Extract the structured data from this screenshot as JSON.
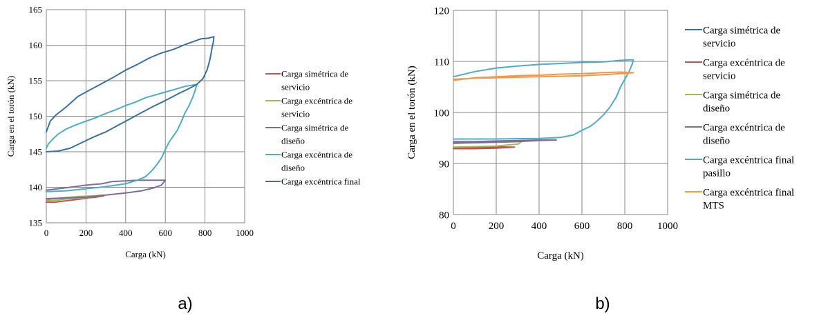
{
  "figure": {
    "panel_labels": [
      "a)",
      "b)"
    ]
  },
  "colors": {
    "sym_serv": "#3a6ea5",
    "exc_serv": "#c0504d",
    "sym_dis": "#9bbb59",
    "exc_dis": "#7f6a9c",
    "exc_final": "#4bacc6",
    "mts": "#f79646"
  },
  "chart_data": [
    {
      "type": "line",
      "xlabel": "Carga (kN)",
      "ylabel": "Carga en el torón (kN)",
      "xlim": [
        0,
        1000
      ],
      "ylim": [
        135,
        165
      ],
      "xticks": [
        "0",
        "200",
        "400",
        "600",
        "800",
        "1000"
      ],
      "yticks": [
        "135",
        "140",
        "145",
        "150",
        "155",
        "160",
        "165"
      ],
      "grid": true,
      "legend_position": "right",
      "series": [
        {
          "name": "Carga simétrica de servicio",
          "legend_lines": [
            "Carga simétrica de",
            "servicio"
          ],
          "color": "#c0504d",
          "points": [
            [
              0,
              137.9
            ],
            [
              40,
              137.9
            ],
            [
              100,
              138.1
            ],
            [
              160,
              138.3
            ],
            [
              210,
              138.5
            ],
            [
              250,
              138.6
            ],
            [
              290,
              138.8
            ],
            [
              250,
              138.7
            ],
            [
              180,
              138.6
            ],
            [
              100,
              138.5
            ],
            [
              30,
              138.4
            ],
            [
              0,
              138.2
            ]
          ]
        },
        {
          "name": "Carga excéntrica de servicio",
          "legend_lines": [
            "Carga excéntrica de",
            "servicio"
          ],
          "color": "#9bbb59",
          "points": [
            [
              0,
              138.1
            ],
            [
              60,
              138.2
            ],
            [
              120,
              138.4
            ],
            [
              180,
              138.5
            ],
            [
              240,
              138.7
            ],
            [
              290,
              138.9
            ],
            [
              240,
              138.8
            ],
            [
              160,
              138.7
            ],
            [
              80,
              138.5
            ],
            [
              0,
              138.3
            ]
          ]
        },
        {
          "name": "Carga simétrica de diseño",
          "legend_lines": [
            "Carga simétrica de",
            "diseño"
          ],
          "color": "#7f6a9c",
          "points": [
            [
              0,
              138.4
            ],
            [
              100,
              138.5
            ],
            [
              200,
              138.6
            ],
            [
              300,
              138.9
            ],
            [
              400,
              139.2
            ],
            [
              480,
              139.5
            ],
            [
              540,
              139.9
            ],
            [
              580,
              140.3
            ],
            [
              600,
              141.0
            ],
            [
              540,
              141.0
            ],
            [
              460,
              141.0
            ],
            [
              400,
              140.9
            ],
            [
              330,
              140.8
            ],
            [
              280,
              140.5
            ],
            [
              200,
              140.3
            ],
            [
              120,
              140.0
            ],
            [
              60,
              139.8
            ],
            [
              0,
              139.6
            ]
          ]
        },
        {
          "name": "Carga excéntrica de diseño",
          "legend_lines": [
            "Carga excéntrica de",
            "diseño"
          ],
          "color": "#4bacc6",
          "points": [
            [
              0,
              139.4
            ],
            [
              100,
              139.5
            ],
            [
              200,
              139.8
            ],
            [
              300,
              140.1
            ],
            [
              400,
              140.5
            ],
            [
              460,
              141.0
            ],
            [
              500,
              141.5
            ],
            [
              520,
              142.0
            ],
            [
              540,
              142.6
            ],
            [
              560,
              143.3
            ],
            [
              580,
              144.1
            ],
            [
              600,
              145.3
            ],
            [
              620,
              146.4
            ],
            [
              640,
              147.2
            ],
            [
              660,
              148.0
            ],
            [
              680,
              149.2
            ],
            [
              700,
              150.5
            ],
            [
              720,
              151.5
            ],
            [
              740,
              152.8
            ],
            [
              755,
              154.1
            ],
            [
              760,
              154.5
            ],
            [
              740,
              154.4
            ],
            [
              700,
              154.2
            ],
            [
              650,
              153.8
            ],
            [
              600,
              153.4
            ],
            [
              550,
              153.0
            ],
            [
              500,
              152.6
            ],
            [
              450,
              152.0
            ],
            [
              400,
              151.5
            ],
            [
              350,
              150.9
            ],
            [
              300,
              150.4
            ],
            [
              250,
              149.8
            ],
            [
              200,
              149.3
            ],
            [
              150,
              148.8
            ],
            [
              100,
              148.2
            ],
            [
              60,
              147.5
            ],
            [
              30,
              146.7
            ],
            [
              10,
              146.1
            ],
            [
              0,
              145.5
            ]
          ]
        },
        {
          "name": "Carga excéntrica final",
          "legend_lines": [
            "Carga excéntrica final"
          ],
          "color": "#3a6ea5",
          "points": [
            [
              0,
              145.0
            ],
            [
              60,
              145.1
            ],
            [
              120,
              145.5
            ],
            [
              180,
              146.3
            ],
            [
              240,
              147.1
            ],
            [
              300,
              147.8
            ],
            [
              360,
              148.7
            ],
            [
              420,
              149.6
            ],
            [
              480,
              150.5
            ],
            [
              540,
              151.4
            ],
            [
              600,
              152.2
            ],
            [
              660,
              153.1
            ],
            [
              720,
              153.9
            ],
            [
              760,
              154.5
            ],
            [
              790,
              155.3
            ],
            [
              810,
              156.5
            ],
            [
              825,
              158.0
            ],
            [
              835,
              159.5
            ],
            [
              842,
              160.5
            ],
            [
              845,
              161.2
            ],
            [
              820,
              161.0
            ],
            [
              780,
              160.9
            ],
            [
              740,
              160.5
            ],
            [
              700,
              160.1
            ],
            [
              640,
              159.4
            ],
            [
              580,
              158.9
            ],
            [
              520,
              158.2
            ],
            [
              460,
              157.3
            ],
            [
              400,
              156.5
            ],
            [
              340,
              155.5
            ],
            [
              280,
              154.6
            ],
            [
              220,
              153.7
            ],
            [
              160,
              152.8
            ],
            [
              100,
              151.3
            ],
            [
              50,
              150.2
            ],
            [
              20,
              149.3
            ],
            [
              0,
              147.8
            ]
          ]
        }
      ]
    },
    {
      "type": "line",
      "xlabel": "Carga (kN)",
      "ylabel": "Carga en el torón (kN)",
      "xlim": [
        0,
        1000
      ],
      "ylim": [
        80,
        120
      ],
      "xticks": [
        "0",
        "200",
        "400",
        "600",
        "800",
        "1000"
      ],
      "yticks": [
        "80",
        "90",
        "100",
        "110",
        "120"
      ],
      "grid": true,
      "legend_position": "right",
      "series": [
        {
          "name": "Carga simétrica de servicio",
          "legend_lines": [
            "Carga simétrica de",
            "servicio"
          ],
          "color": "#3a6ea5",
          "points": [
            [
              0,
              93.0
            ],
            [
              80,
              93.0
            ],
            [
              160,
              93.1
            ],
            [
              220,
              93.1
            ],
            [
              250,
              93.2
            ],
            [
              200,
              93.2
            ],
            [
              120,
              93.1
            ],
            [
              40,
              93.0
            ],
            [
              0,
              93.0
            ]
          ]
        },
        {
          "name": "Carga excéntrica de servicio",
          "legend_lines": [
            "Carga excéntrica de",
            "servicio"
          ],
          "color": "#c0504d",
          "points": [
            [
              0,
              92.9
            ],
            [
              100,
              92.9
            ],
            [
              200,
              93.0
            ],
            [
              285,
              93.2
            ],
            [
              200,
              93.2
            ],
            [
              100,
              93.1
            ],
            [
              0,
              93.0
            ]
          ]
        },
        {
          "name": "Carga simétrica de diseño",
          "legend_lines": [
            "Carga simétrica de",
            "diseño"
          ],
          "color": "#9bbb59",
          "points": [
            [
              0,
              93.2
            ],
            [
              100,
              93.3
            ],
            [
              200,
              93.4
            ],
            [
              300,
              93.8
            ],
            [
              320,
              94.3
            ],
            [
              250,
              94.2
            ],
            [
              150,
              94.1
            ],
            [
              50,
              94.0
            ],
            [
              0,
              93.9
            ]
          ]
        },
        {
          "name": "Carga excéntrica de diseño",
          "legend_lines": [
            "Carga excéntrica de",
            "diseño"
          ],
          "color": "#7f6a9c",
          "points": [
            [
              0,
              94.0
            ],
            [
              100,
              94.1
            ],
            [
              200,
              94.2
            ],
            [
              300,
              94.3
            ],
            [
              400,
              94.5
            ],
            [
              480,
              94.6
            ],
            [
              400,
              94.6
            ],
            [
              300,
              94.5
            ],
            [
              200,
              94.4
            ],
            [
              100,
              94.3
            ],
            [
              0,
              94.3
            ]
          ]
        },
        {
          "name": "Carga excéntrica final pasillo",
          "legend_lines": [
            "Carga excéntrica final",
            "pasillo"
          ],
          "color": "#4bacc6",
          "points": [
            [
              0,
              94.8
            ],
            [
              200,
              94.8
            ],
            [
              400,
              94.9
            ],
            [
              500,
              95.1
            ],
            [
              560,
              95.6
            ],
            [
              600,
              96.5
            ],
            [
              640,
              97.3
            ],
            [
              670,
              98.3
            ],
            [
              700,
              99.5
            ],
            [
              730,
              101.0
            ],
            [
              760,
              103.0
            ],
            [
              780,
              105.0
            ],
            [
              800,
              106.5
            ],
            [
              820,
              108.0
            ],
            [
              835,
              109.5
            ],
            [
              840,
              110.3
            ],
            [
              820,
              110.3
            ],
            [
              780,
              110.2
            ],
            [
              700,
              109.9
            ],
            [
              600,
              109.8
            ],
            [
              500,
              109.6
            ],
            [
              400,
              109.4
            ],
            [
              300,
              109.1
            ],
            [
              200,
              108.7
            ],
            [
              100,
              108.0
            ],
            [
              0,
              107.0
            ]
          ]
        },
        {
          "name": "Carga excéntrica final MTS",
          "legend_lines": [
            "Carga excéntrica final",
            "MTS"
          ],
          "color": "#f79646",
          "points": [
            [
              0,
              106.5
            ],
            [
              100,
              106.7
            ],
            [
              200,
              106.8
            ],
            [
              300,
              106.9
            ],
            [
              400,
              107.0
            ],
            [
              500,
              107.1
            ],
            [
              600,
              107.2
            ],
            [
              700,
              107.4
            ],
            [
              780,
              107.6
            ],
            [
              840,
              107.8
            ],
            [
              780,
              107.9
            ],
            [
              700,
              107.8
            ],
            [
              600,
              107.6
            ],
            [
              500,
              107.5
            ],
            [
              400,
              107.3
            ],
            [
              300,
              107.2
            ],
            [
              200,
              107.0
            ],
            [
              100,
              106.8
            ],
            [
              0,
              106.3
            ]
          ]
        }
      ]
    }
  ]
}
